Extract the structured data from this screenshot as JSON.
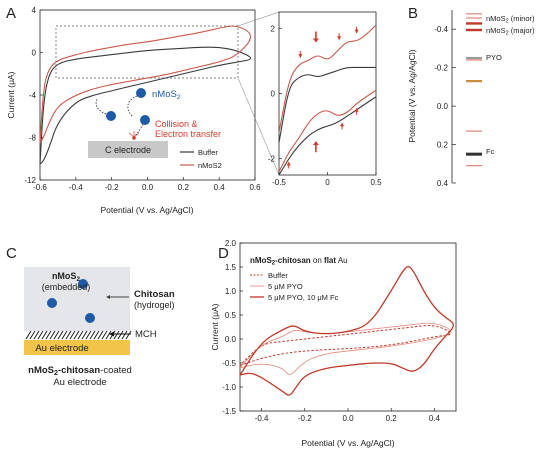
{
  "panel_letters": {
    "a": "A",
    "b": "B",
    "c": "C",
    "d": "D"
  },
  "colors": {
    "buffer": "#3a3a3a",
    "nmos2": "#c85a4a",
    "nmos2_minor": "#d97a6a",
    "nmos2_major": "#c0392b",
    "pyo": "#9a9a9a",
    "pyo_band": "#c98a40",
    "fc": "#333333",
    "d_buffer": "#c0392b",
    "d_pyo": "#e08a7a",
    "d_pyo_fc": "#c0392b",
    "blue": "#1f5aa6",
    "red": "#d43a2a"
  },
  "panelA": {
    "inset": {
      "particle_label": "nMoS2",
      "collision_line1": "Collision &",
      "collision_line2": "Electron transfer",
      "electrode_label": "C electrode"
    },
    "zoom_arrow_count": 8
  },
  "panelC": {
    "nmos2_label": "nMoS2",
    "embedded_label": "(embedded)",
    "chitosan_label": "Chitosan",
    "hydrogel_label": "(hydrogel)",
    "mch_label": "MCH",
    "electrode_label": "Au electrode",
    "caption_line1": "nMoS2-chitosan-coated",
    "caption_line2": "Au electrode"
  },
  "chart_data": [
    {
      "id": "A-main",
      "type": "line",
      "xlabel": "Potential  (V vs. Ag/AgCl)",
      "ylabel": "Current (μA)",
      "xlim": [
        -0.6,
        0.6
      ],
      "ylim": [
        -12,
        4
      ],
      "xticks": [
        -0.6,
        -0.4,
        -0.2,
        0.0,
        0.2,
        0.4,
        0.6
      ],
      "yticks": [
        -12,
        -8,
        -4,
        0,
        4
      ],
      "legend": [
        "Buffer",
        "nMoS2"
      ],
      "legend_position": "bottom-right",
      "series": [
        {
          "name": "Buffer",
          "x": [
            -0.6,
            -0.58,
            -0.55,
            -0.5,
            -0.4,
            -0.3,
            -0.2,
            -0.1,
            0.0,
            0.1,
            0.2,
            0.3,
            0.4,
            0.5,
            0.6,
            0.5,
            0.4,
            0.3,
            0.2,
            0.1,
            0.0,
            -0.1,
            -0.2,
            -0.3,
            -0.4,
            -0.5,
            -0.55,
            -0.58,
            -0.6
          ],
          "y": [
            -10.5,
            -10.2,
            -9.0,
            -6.5,
            -4.6,
            -4.0,
            -3.6,
            -3.2,
            -2.8,
            -2.4,
            -2.0,
            -1.6,
            -1.2,
            -0.9,
            -0.6,
            0.2,
            0.5,
            0.5,
            0.4,
            0.3,
            0.2,
            0.0,
            -0.2,
            -0.4,
            -0.6,
            -1.0,
            -2.0,
            -4.5,
            -10.5
          ]
        },
        {
          "name": "nMoS2",
          "x": [
            -0.6,
            -0.58,
            -0.55,
            -0.5,
            -0.4,
            -0.3,
            -0.2,
            -0.1,
            0.0,
            0.1,
            0.2,
            0.3,
            0.4,
            0.5,
            0.6,
            0.5,
            0.4,
            0.3,
            0.2,
            0.1,
            0.0,
            -0.1,
            -0.2,
            -0.3,
            -0.4,
            -0.5,
            -0.55,
            -0.58,
            -0.6
          ],
          "y": [
            -8.5,
            -8.0,
            -6.6,
            -5.0,
            -4.0,
            -3.4,
            -3.0,
            -2.7,
            -2.4,
            -2.1,
            -1.7,
            -1.3,
            -0.9,
            -0.3,
            1.6,
            2.6,
            2.3,
            1.9,
            1.6,
            1.3,
            1.0,
            0.8,
            0.5,
            0.2,
            -0.2,
            -0.7,
            -1.5,
            -3.2,
            -8.5
          ]
        }
      ]
    },
    {
      "id": "A-zoom",
      "type": "line",
      "xlim": [
        -0.5,
        0.5
      ],
      "ylim": [
        -2.5,
        2.5
      ],
      "xticks": [
        -0.5,
        0.0,
        0.5
      ],
      "yticks": [
        -2,
        0,
        2
      ],
      "series": [
        {
          "name": "Buffer-forward",
          "x": [
            -0.5,
            -0.4,
            -0.3,
            -0.2,
            -0.1,
            0.0,
            0.1,
            0.2,
            0.3,
            0.4,
            0.5
          ],
          "y": [
            -1.5,
            0.2,
            0.5,
            0.6,
            0.5,
            0.6,
            0.7,
            0.8,
            0.8,
            0.8,
            0.8
          ]
        },
        {
          "name": "Buffer-reverse",
          "x": [
            -0.5,
            -0.4,
            -0.3,
            -0.2,
            -0.1,
            0.0,
            0.1,
            0.2,
            0.3,
            0.4,
            0.5
          ],
          "y": [
            -2.5,
            -2.0,
            -1.6,
            -1.3,
            -1.1,
            -1.0,
            -0.9,
            -0.7,
            -0.5,
            -0.3,
            -0.1
          ]
        },
        {
          "name": "nMoS2-forward",
          "x": [
            -0.5,
            -0.4,
            -0.3,
            -0.2,
            -0.1,
            0.0,
            0.1,
            0.2,
            0.3,
            0.4,
            0.5
          ],
          "y": [
            -1.2,
            0.4,
            0.9,
            1.0,
            1.2,
            1.0,
            1.3,
            1.6,
            1.6,
            1.8,
            2.1
          ]
        },
        {
          "name": "nMoS2-reverse",
          "x": [
            -0.5,
            -0.4,
            -0.3,
            -0.2,
            -0.1,
            0.0,
            0.1,
            0.2,
            0.3,
            0.4,
            0.5
          ],
          "y": [
            -2.4,
            -1.8,
            -1.4,
            -0.9,
            -0.6,
            -0.5,
            -0.7,
            -0.6,
            -0.3,
            -0.1,
            0.1
          ]
        }
      ]
    },
    {
      "id": "B",
      "type": "line",
      "ylabel": "Potential (V vs. Ag/AgCl)",
      "ylim": [
        0.4,
        -0.5
      ],
      "yticks": [
        -0.4,
        -0.2,
        0.0,
        0.2,
        0.4
      ],
      "legend_position": "top-right",
      "levels": [
        {
          "name": "nMoS2 (minor)",
          "values": [
            -0.48,
            -0.24,
            0.13,
            0.31
          ]
        },
        {
          "name": "nMoS2 (major)",
          "values": [
            -0.43
          ]
        },
        {
          "name": "PYO",
          "values": [
            -0.25,
            -0.13
          ]
        },
        {
          "name": "Fc",
          "values": [
            0.25
          ]
        }
      ]
    },
    {
      "id": "D",
      "type": "line",
      "title_parts": [
        "nMoS2-chitosan",
        " on ",
        "flat",
        " Au"
      ],
      "xlabel": "Potential  (V vs. Ag/AgCl)",
      "ylabel": "Current (μA)",
      "xlim": [
        -0.5,
        0.5
      ],
      "ylim": [
        -1.5,
        2.0
      ],
      "xticks": [
        -0.4,
        -0.2,
        0.0,
        0.2,
        0.4
      ],
      "yticks": [
        -1.5,
        -1.0,
        -0.5,
        0.0,
        0.5,
        1.0,
        1.5,
        2.0
      ],
      "legend_position": "top-left",
      "series": [
        {
          "name": "Buffer",
          "x": [
            -0.5,
            -0.4,
            -0.3,
            -0.2,
            -0.1,
            0.0,
            0.1,
            0.2,
            0.3,
            0.4,
            0.5,
            0.4,
            0.3,
            0.2,
            0.1,
            0.0,
            -0.1,
            -0.2,
            -0.3,
            -0.4,
            -0.5
          ],
          "y": [
            -0.55,
            -0.4,
            -0.3,
            -0.25,
            -0.22,
            -0.2,
            -0.17,
            -0.12,
            -0.05,
            0.05,
            0.1,
            0.3,
            0.25,
            0.2,
            0.15,
            0.1,
            0.05,
            0.0,
            -0.05,
            -0.1,
            -0.55
          ]
        },
        {
          "name": "5 μM PYO",
          "x": [
            -0.5,
            -0.4,
            -0.3,
            -0.27,
            -0.2,
            -0.1,
            0.0,
            0.1,
            0.2,
            0.3,
            0.4,
            0.5,
            0.4,
            0.3,
            0.2,
            0.1,
            0.0,
            -0.1,
            -0.2,
            -0.25,
            -0.3,
            -0.4,
            -0.5
          ],
          "y": [
            -0.6,
            -0.5,
            -0.6,
            -0.8,
            -0.45,
            -0.3,
            -0.25,
            -0.2,
            -0.15,
            -0.08,
            0.0,
            0.15,
            0.35,
            0.3,
            0.25,
            0.2,
            0.15,
            0.1,
            0.15,
            0.2,
            0.05,
            -0.1,
            -0.6
          ]
        },
        {
          "name": "5 μM PYO, 10 μM Fc",
          "x": [
            -0.5,
            -0.45,
            -0.4,
            -0.35,
            -0.3,
            -0.27,
            -0.24,
            -0.2,
            -0.1,
            0.0,
            0.1,
            0.2,
            0.25,
            0.3,
            0.35,
            0.4,
            0.45,
            0.5,
            0.45,
            0.4,
            0.35,
            0.3,
            0.27,
            0.2,
            0.1,
            0.0,
            -0.1,
            -0.2,
            -0.25,
            -0.3,
            -0.4,
            -0.5
          ],
          "y": [
            -0.75,
            -0.7,
            -0.8,
            -0.95,
            -1.1,
            -1.2,
            -1.0,
            -0.75,
            -0.6,
            -0.55,
            -0.5,
            -0.5,
            -0.6,
            -0.7,
            -0.55,
            -0.2,
            0.05,
            0.3,
            0.45,
            0.65,
            1.0,
            1.45,
            1.55,
            1.0,
            0.3,
            0.15,
            0.1,
            0.15,
            0.3,
            0.2,
            -0.05,
            -0.75
          ]
        }
      ]
    }
  ],
  "labels": {
    "a_xlabel": "Potential  (V vs. Ag/AgCl)",
    "a_ylabel": "Current (μA)",
    "b_ylabel": "Potential (V vs. Ag/AgCl)",
    "d_xlabel": "Potential  (V vs. Ag/AgCl)",
    "d_ylabel": "Current (μA)",
    "d_title_bold": "nMoS2-chitosan",
    "d_title_mid": " on ",
    "d_title_bold2": "flat",
    "d_title_end": " Au",
    "legend_a_buffer": "Buffer",
    "legend_a_nmos2": "nMoS2",
    "legend_b_minor": "nMoS2 (minor)",
    "legend_b_major": "nMoS2 (major)",
    "legend_b_pyo": "PYO",
    "legend_b_fc": "Fc",
    "legend_d_buffer": "Buffer",
    "legend_d_pyo": "5 μM PYO",
    "legend_d_pyofc": "5 μM PYO, 10 μM Fc"
  }
}
